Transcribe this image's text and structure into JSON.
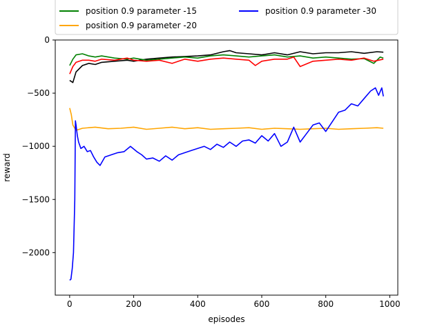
{
  "chart_data": {
    "type": "line",
    "title": "",
    "xlabel": "episodes",
    "ylabel": "reward",
    "xlim": [
      -45,
      1025
    ],
    "ylim": [
      -2400,
      0
    ],
    "xticks": [
      0,
      200,
      400,
      600,
      800,
      1000
    ],
    "xtick_labels": [
      "0",
      "200",
      "400",
      "600",
      "800",
      "1000"
    ],
    "yticks": [
      0,
      -500,
      -1000,
      -1500,
      -2000
    ],
    "ytick_labels": [
      "0",
      "−500",
      "−1000",
      "−1500",
      "−2000"
    ],
    "grid": false,
    "legend_placement": "top",
    "legend": {
      "columns": 2,
      "entries": [
        {
          "label": "position 0.9 parameter -15",
          "color": "#008000"
        },
        {
          "label": "position 0.9 parameter -30",
          "color": "#0000ff"
        },
        {
          "label": "position 0.9 parameter -20",
          "color": "#ffa500"
        }
      ]
    },
    "series": [
      {
        "color": "#000000",
        "x": [
          0,
          10,
          20,
          40,
          60,
          80,
          100,
          140,
          180,
          200,
          240,
          280,
          320,
          360,
          400,
          440,
          480,
          500,
          520,
          560,
          600,
          640,
          680,
          720,
          760,
          800,
          840,
          880,
          920,
          960,
          980
        ],
        "y": [
          -380,
          -400,
          -300,
          -240,
          -220,
          -230,
          -210,
          -200,
          -190,
          -200,
          -180,
          -170,
          -160,
          -155,
          -150,
          -140,
          -110,
          -100,
          -120,
          -130,
          -140,
          -120,
          -140,
          -110,
          -130,
          -120,
          -120,
          -110,
          -125,
          -110,
          -115
        ]
      },
      {
        "name": "position 0.9 parameter -15",
        "color": "#008000",
        "x": [
          0,
          10,
          20,
          40,
          60,
          80,
          100,
          140,
          180,
          200,
          240,
          280,
          320,
          360,
          400,
          440,
          480,
          520,
          560,
          600,
          640,
          680,
          720,
          760,
          800,
          840,
          880,
          920,
          950,
          970,
          980
        ],
        "y": [
          -240,
          -180,
          -140,
          -130,
          -150,
          -160,
          -150,
          -170,
          -180,
          -170,
          -190,
          -180,
          -170,
          -160,
          -170,
          -150,
          -140,
          -150,
          -160,
          -150,
          -140,
          -160,
          -150,
          -170,
          -160,
          -170,
          -180,
          -175,
          -220,
          -160,
          -170
        ]
      },
      {
        "color": "#ff0000",
        "x": [
          0,
          10,
          20,
          40,
          60,
          80,
          100,
          140,
          180,
          200,
          240,
          280,
          320,
          340,
          360,
          400,
          440,
          480,
          520,
          560,
          580,
          600,
          640,
          680,
          700,
          720,
          760,
          800,
          840,
          880,
          920,
          950,
          980
        ],
        "y": [
          -320,
          -250,
          -210,
          -190,
          -190,
          -200,
          -180,
          -190,
          -170,
          -190,
          -200,
          -190,
          -220,
          -200,
          -180,
          -200,
          -180,
          -170,
          -180,
          -190,
          -240,
          -200,
          -180,
          -180,
          -160,
          -250,
          -200,
          -190,
          -180,
          -190,
          -170,
          -200,
          -180
        ]
      },
      {
        "name": "position 0.9 parameter -20",
        "color": "#ffa500",
        "x": [
          0,
          5,
          10,
          20,
          40,
          80,
          120,
          160,
          200,
          240,
          280,
          320,
          360,
          400,
          440,
          480,
          520,
          560,
          600,
          640,
          680,
          720,
          760,
          800,
          840,
          880,
          920,
          960,
          980
        ],
        "y": [
          -640,
          -700,
          -800,
          -850,
          -830,
          -820,
          -835,
          -830,
          -820,
          -840,
          -830,
          -820,
          -835,
          -825,
          -840,
          -835,
          -830,
          -825,
          -840,
          -830,
          -835,
          -840,
          -835,
          -830,
          -840,
          -835,
          -830,
          -825,
          -830
        ]
      },
      {
        "name": "position 0.9 parameter -30",
        "color": "#0000ff",
        "x": [
          0,
          4,
          8,
          12,
          16,
          18,
          20,
          24,
          28,
          35,
          45,
          55,
          65,
          75,
          85,
          95,
          110,
          130,
          150,
          170,
          190,
          210,
          225,
          240,
          260,
          280,
          300,
          320,
          340,
          360,
          380,
          400,
          420,
          440,
          460,
          480,
          500,
          520,
          540,
          560,
          580,
          600,
          620,
          640,
          660,
          680,
          700,
          720,
          740,
          760,
          780,
          800,
          820,
          840,
          860,
          880,
          900,
          920,
          940,
          955,
          965,
          975,
          980
        ],
        "y": [
          -2260,
          -2250,
          -2150,
          -2000,
          -1500,
          -760,
          -800,
          -900,
          -960,
          -1020,
          -1000,
          -1050,
          -1040,
          -1100,
          -1150,
          -1180,
          -1100,
          -1080,
          -1060,
          -1050,
          -1000,
          -1050,
          -1080,
          -1120,
          -1110,
          -1140,
          -1090,
          -1130,
          -1080,
          -1060,
          -1040,
          -1020,
          -1000,
          -1030,
          -980,
          -1010,
          -960,
          -1000,
          -950,
          -940,
          -970,
          -900,
          -950,
          -880,
          -1000,
          -960,
          -820,
          -960,
          -880,
          -800,
          -780,
          -860,
          -770,
          -680,
          -660,
          -600,
          -620,
          -550,
          -480,
          -450,
          -520,
          -450,
          -530
        ]
      }
    ]
  }
}
